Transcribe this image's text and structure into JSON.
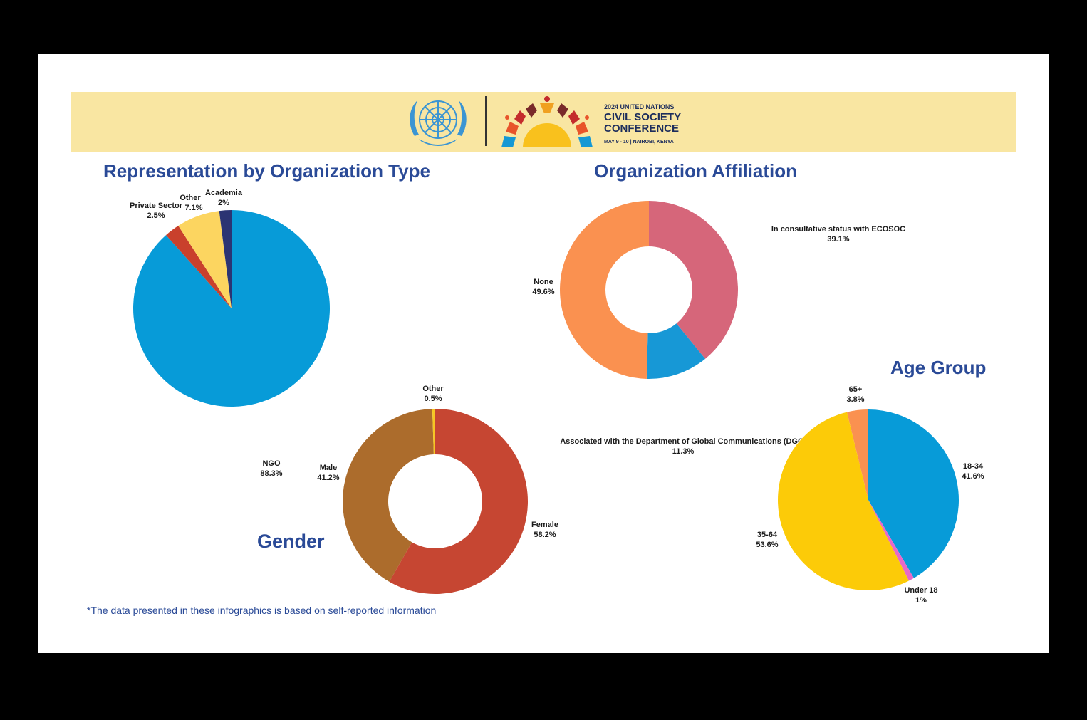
{
  "banner": {
    "event_year_line": "2024 UNITED NATIONS",
    "event_name_line1": "CIVIL SOCIETY",
    "event_name_line2": "CONFERENCE",
    "event_dates": "MAY 9 - 10 | NAIROBI, KENYA"
  },
  "colors": {
    "banner_bg": "#f9e6a2",
    "title_blue": "#2a4a97",
    "un_blue": "#3b95d3"
  },
  "chart_data": [
    {
      "id": "org_type",
      "type": "pie",
      "title": "Representation by Organization Type",
      "slices": [
        {
          "label": "NGO",
          "value": 88.3,
          "display": "88.3%",
          "color": "#079bd8"
        },
        {
          "label": "Private Sector",
          "value": 2.5,
          "display": "2.5%",
          "color": "#c9402c"
        },
        {
          "label": "Other",
          "value": 7.1,
          "display": "7.1%",
          "color": "#fcd560"
        },
        {
          "label": "Academia",
          "value": 2,
          "display": "2%",
          "color": "#2b3473"
        }
      ]
    },
    {
      "id": "affiliation",
      "type": "pie",
      "donut": true,
      "title": "Organization Affiliation",
      "slices": [
        {
          "label": "In consultative status with ECOSOC",
          "value": 39.1,
          "display": "39.1%",
          "color": "#d6667a"
        },
        {
          "label": "Associated with the Department of Global Communications (DGC)",
          "value": 11.3,
          "display": "11.3%",
          "color": "#1798d6"
        },
        {
          "label": "None",
          "value": 49.6,
          "display": "49.6%",
          "color": "#fa9150"
        }
      ]
    },
    {
      "id": "gender",
      "type": "pie",
      "donut": true,
      "title": "Gender",
      "slices": [
        {
          "label": "Female",
          "value": 58.2,
          "display": "58.2%",
          "color": "#c64632"
        },
        {
          "label": "Male",
          "value": 41.2,
          "display": "41.2%",
          "color": "#ac6c2c"
        },
        {
          "label": "Other",
          "value": 0.5,
          "display": "0.5%",
          "color": "#f6c623"
        }
      ]
    },
    {
      "id": "age",
      "type": "pie",
      "title": "Age Group",
      "slices": [
        {
          "label": "18-34",
          "value": 41.6,
          "display": "41.6%",
          "color": "#079bd8"
        },
        {
          "label": "Under 18",
          "value": 1,
          "display": "1%",
          "color": "#e868c8"
        },
        {
          "label": "35-64",
          "value": 53.6,
          "display": "53.6%",
          "color": "#fccb08"
        },
        {
          "label": "65+",
          "value": 3.8,
          "display": "3.8%",
          "color": "#fa9150"
        }
      ]
    }
  ],
  "footnote": "*The data presented in these infographics is based on self-reported information"
}
